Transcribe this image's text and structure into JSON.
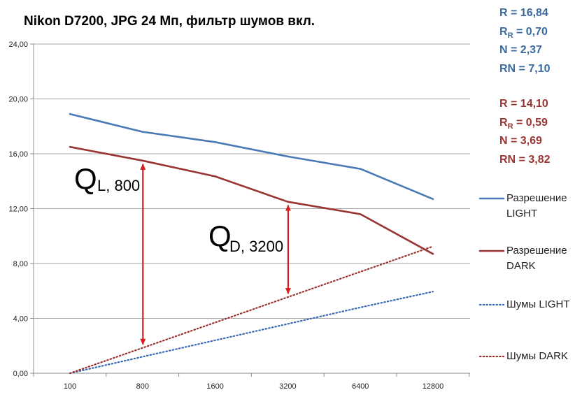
{
  "chart_data": {
    "type": "line",
    "title": "Nikon D7200, JPG 24 Мп, фильтр шумов вкл.",
    "xlabel": "",
    "ylabel": "",
    "categories": [
      "100",
      "800",
      "1600",
      "3200",
      "6400",
      "12800"
    ],
    "ylim": [
      0,
      24
    ],
    "yticks": [
      "0,00",
      "4,00",
      "8,00",
      "12,00",
      "16,00",
      "20,00",
      "24,00"
    ],
    "grid": "horizontal",
    "legend_position": "right",
    "series": [
      {
        "name": "Разрешение LIGHT",
        "values": [
          18.9,
          17.6,
          16.85,
          15.8,
          14.9,
          12.7
        ],
        "color": "#4a7ab5",
        "style": "solid"
      },
      {
        "name": "Разрешение DARK",
        "values": [
          16.5,
          15.5,
          14.35,
          12.5,
          11.6,
          8.7
        ],
        "color": "#9a3432",
        "style": "solid"
      },
      {
        "name": "Шумы LIGHT",
        "values": [
          0.0,
          1.2,
          2.4,
          3.6,
          4.8,
          5.95
        ],
        "color": "#3a6ab5",
        "style": "dotted"
      },
      {
        "name": "Шумы DARK",
        "values": [
          0.0,
          1.85,
          3.7,
          5.55,
          7.4,
          9.25
        ],
        "color": "#9a3432",
        "style": "dotted"
      }
    ],
    "annotations": [
      {
        "label_main": "Q",
        "label_sub": "L, 800",
        "x": "800",
        "y_from": 1.85,
        "y_to": 15.5,
        "color": "#d61f1f"
      },
      {
        "label_main": "Q",
        "label_sub": "D, 3200",
        "x": "3200",
        "y_from": 5.55,
        "y_to": 12.5,
        "color": "#d61f1f"
      }
    ]
  },
  "stats_light": {
    "color": "#3a6a9e",
    "r": "R = 16,84",
    "rr_prefix": "R",
    "rr_sub": "R",
    "rr_value": " = 0,70",
    "n": "N = 2,37",
    "rn": "RN = 7,10"
  },
  "stats_dark": {
    "color": "#9a3432",
    "r": "R = 14,10",
    "rr_prefix": "R",
    "rr_sub": "R",
    "rr_value": " = 0,59",
    "n": "N = 3,69",
    "rn": "RN = 3,82"
  },
  "legend": {
    "light_res_line1": "Разрешение",
    "light_res_line2": "LIGHT",
    "dark_res_line1": "Разрешение",
    "dark_res_line2": "DARK",
    "light_noise": "Шумы LIGHT",
    "dark_noise": "Шумы DARK"
  }
}
